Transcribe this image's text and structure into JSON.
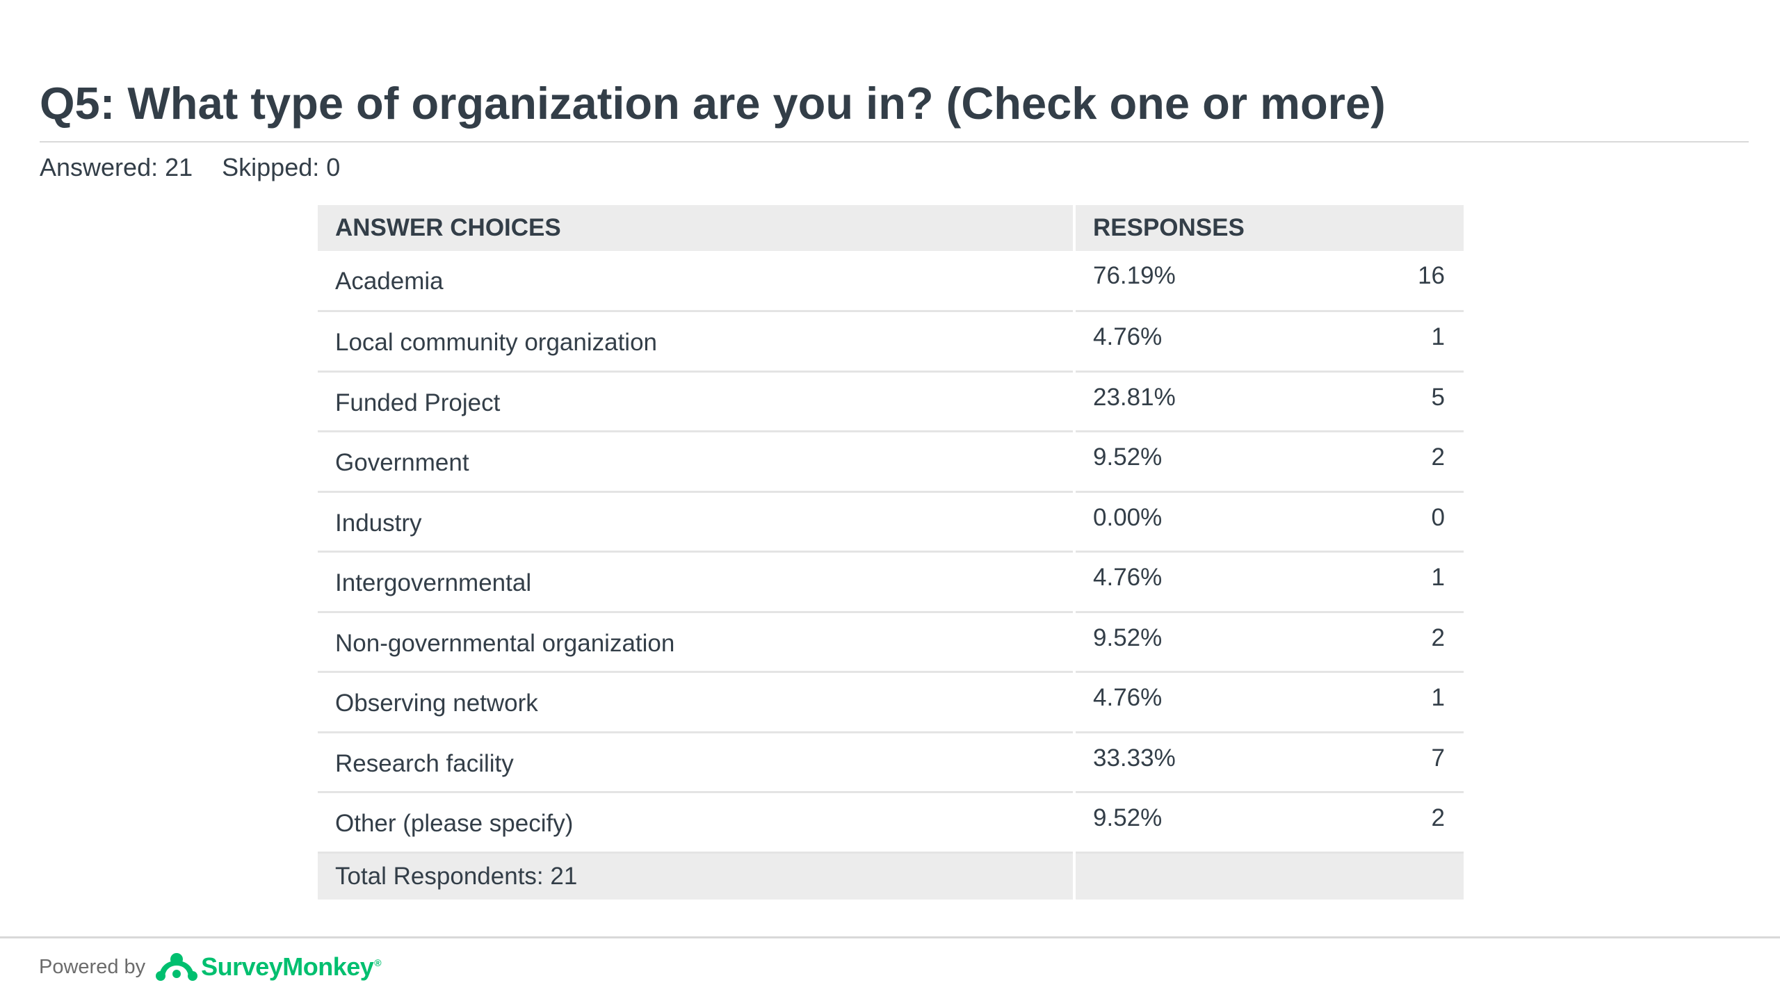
{
  "question": {
    "title": "Q5: What type of organization are you in? (Check one or more)",
    "answered": "Answered: 21",
    "skipped": "Skipped: 0"
  },
  "table": {
    "header_choices": "ANSWER CHOICES",
    "header_responses": "RESPONSES",
    "rows": [
      {
        "choice": "Academia",
        "percent": "76.19%",
        "count": "16"
      },
      {
        "choice": "Local community organization",
        "percent": "4.76%",
        "count": "1"
      },
      {
        "choice": "Funded Project",
        "percent": "23.81%",
        "count": "5"
      },
      {
        "choice": "Government",
        "percent": "9.52%",
        "count": "2"
      },
      {
        "choice": "Industry",
        "percent": "0.00%",
        "count": "0"
      },
      {
        "choice": "Intergovernmental",
        "percent": "4.76%",
        "count": "1"
      },
      {
        "choice": "Non-governmental organization",
        "percent": "9.52%",
        "count": "2"
      },
      {
        "choice": "Observing network",
        "percent": "4.76%",
        "count": "1"
      },
      {
        "choice": "Research facility",
        "percent": "33.33%",
        "count": "7"
      },
      {
        "choice": "Other (please specify)",
        "percent": "9.52%",
        "count": "2"
      }
    ],
    "total": "Total Respondents: 21"
  },
  "footer": {
    "powered_by": "Powered by",
    "brand": "SurveyMonkey",
    "brand_mark": "®",
    "logo_icon": "surveymonkey-logo-icon",
    "brand_color": "#00bf6f"
  }
}
